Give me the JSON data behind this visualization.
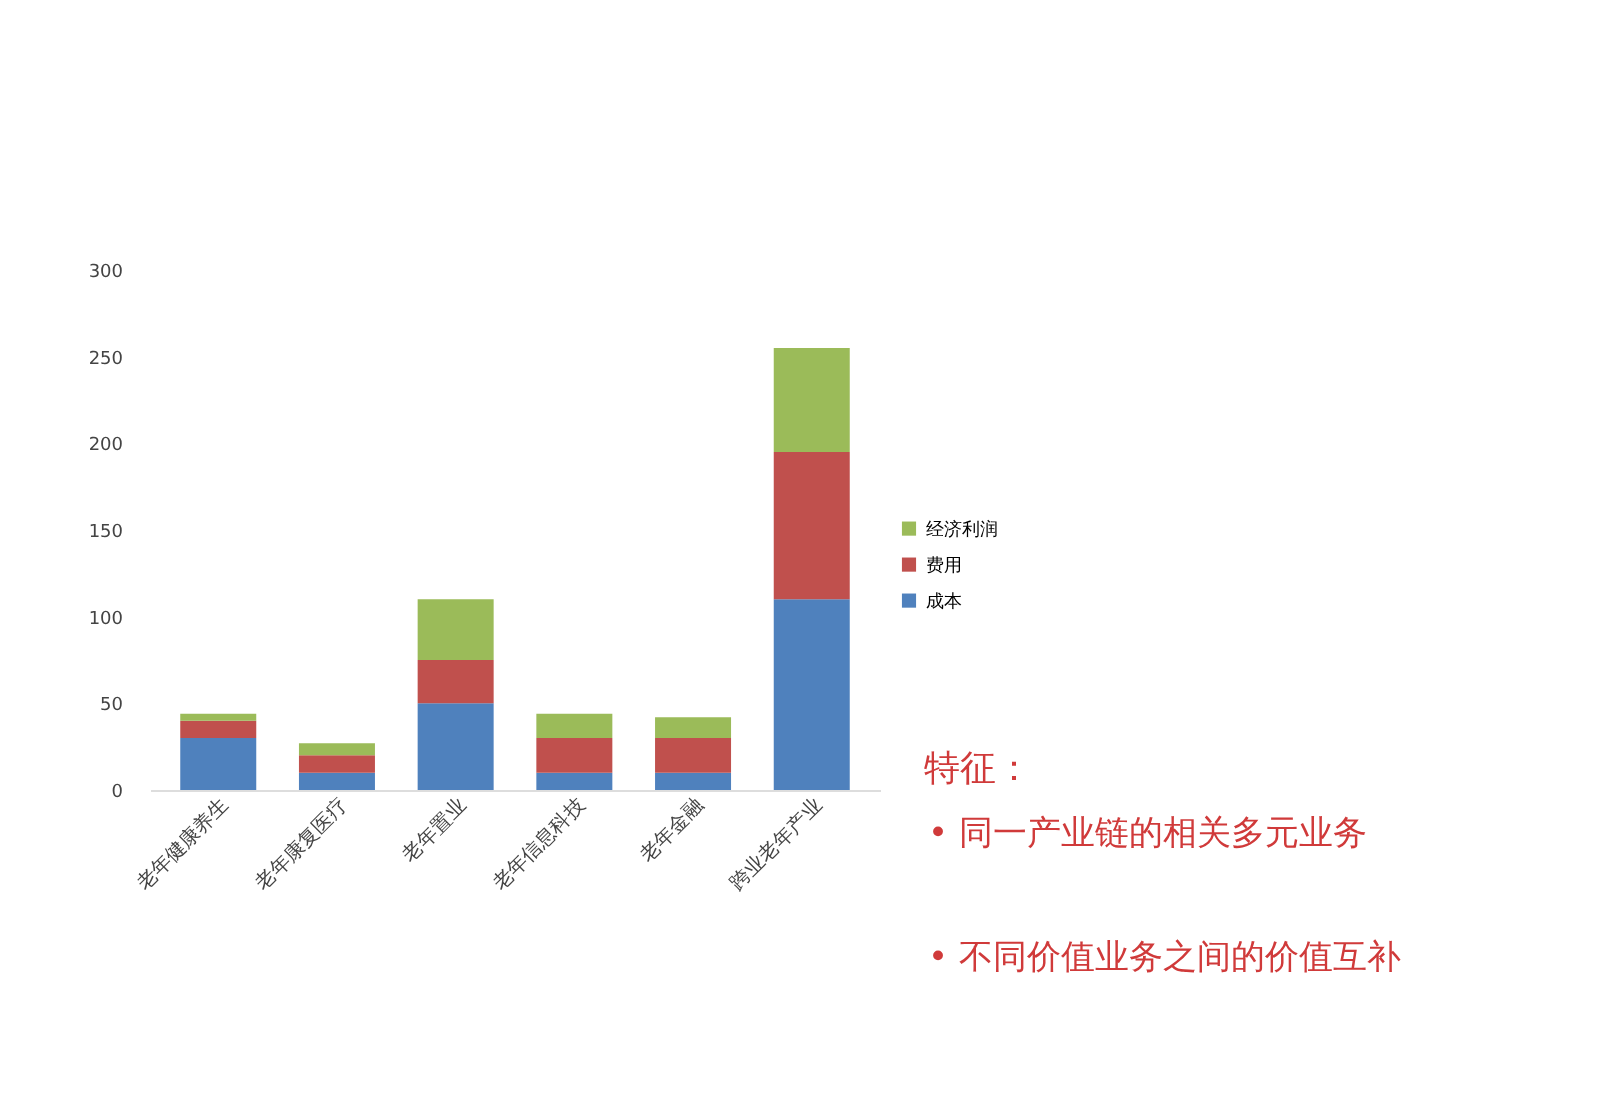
{
  "chart_data": {
    "type": "bar",
    "stacked": true,
    "categories": [
      "老年健康养生",
      "老年康复医疗",
      "老年置业",
      "老年信息科技",
      "老年金融",
      "跨业老年产业"
    ],
    "series": [
      {
        "name": "成本",
        "color": "#4f81bd",
        "values": [
          30,
          10,
          50,
          10,
          10,
          110
        ]
      },
      {
        "name": "费用",
        "color": "#c0504d",
        "values": [
          10,
          10,
          25,
          20,
          20,
          85
        ]
      },
      {
        "name": "经济利润",
        "color": "#9bbb59",
        "values": [
          4,
          7,
          35,
          14,
          12,
          60
        ]
      }
    ],
    "ylim": [
      0,
      300
    ],
    "yticks": [
      0,
      50,
      100,
      150,
      200,
      250,
      300
    ],
    "grid": false,
    "legend": "right",
    "annotations": [
      "特征：",
      "•   同一产业链的相关多元业务",
      "•   不同价值业务之间的价值互补"
    ]
  }
}
